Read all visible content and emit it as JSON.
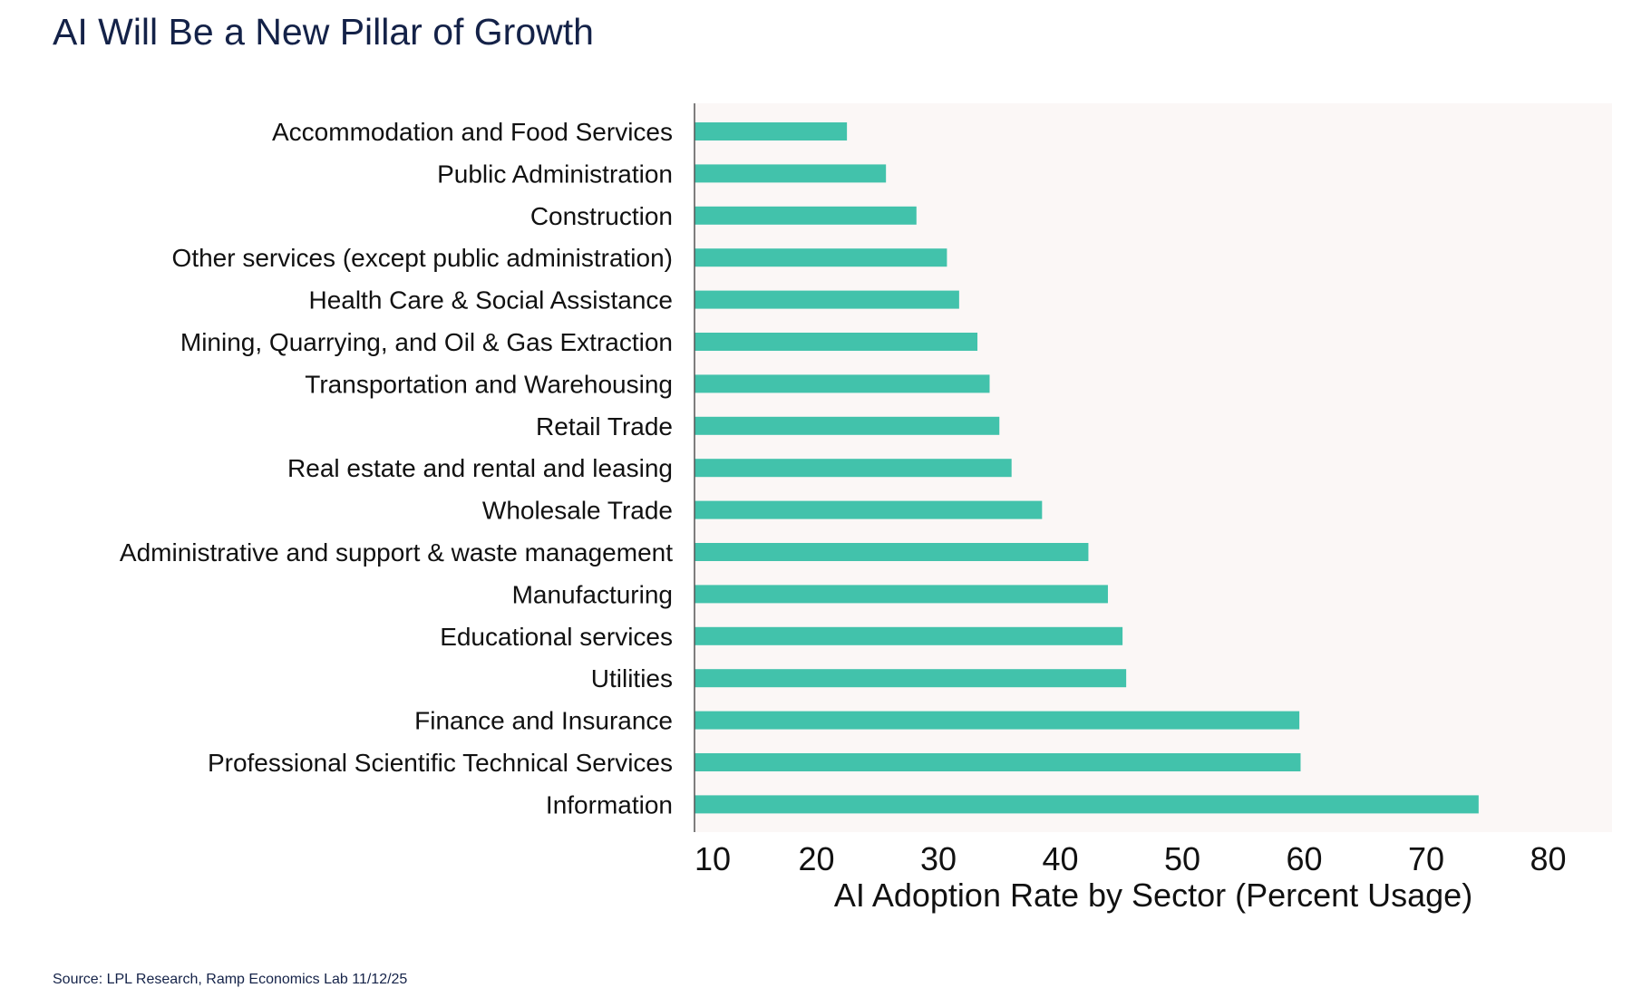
{
  "title": "AI Will Be a New Pillar of Growth",
  "source": "Source: LPL Research, Ramp Economics Lab 11/12/25",
  "colors": {
    "bar": "#42c2ab",
    "plot_background": "#fbf7f6",
    "axis": "#555555",
    "title": "#142248"
  },
  "chart_data": {
    "type": "bar",
    "orientation": "horizontal",
    "categories": [
      "Accommodation and Food Services",
      "Public Administration",
      "Construction",
      "Other services (except public administration)",
      "Health Care & Social Assistance",
      "Mining, Quarrying, and Oil & Gas Extraction",
      "Transportation and Warehousing",
      "Retail Trade",
      "Real estate and rental and leasing",
      "Wholesale Trade",
      "Administrative and support & waste management",
      "Manufacturing",
      "Educational services",
      "Utilities",
      "Finance and Insurance",
      "Professional Scientific Technical Services",
      "Information"
    ],
    "values": [
      22.5,
      25.7,
      28.2,
      30.7,
      31.7,
      33.2,
      34.2,
      35.0,
      36.0,
      38.5,
      42.3,
      43.9,
      45.1,
      45.4,
      59.6,
      59.7,
      74.3
    ],
    "xlabel": "AI Adoption Rate by Sector (Percent Usage)",
    "xlim": [
      10,
      85
    ],
    "xticks": [
      10,
      20,
      30,
      40,
      50,
      60,
      70,
      80
    ],
    "grid": false,
    "legend": "none"
  }
}
